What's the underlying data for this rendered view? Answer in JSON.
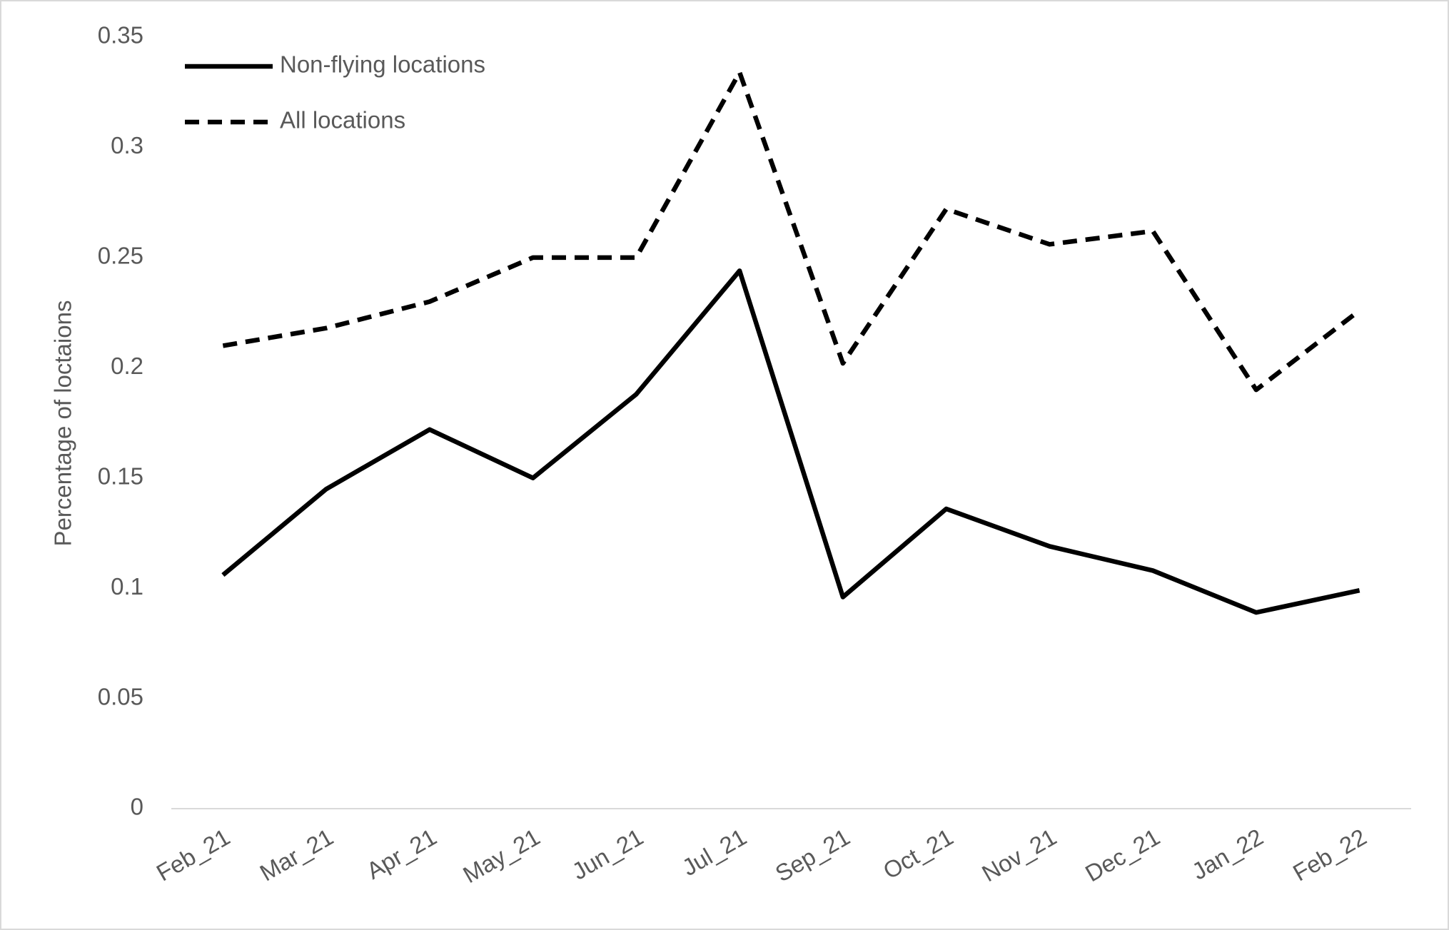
{
  "chart_data": {
    "type": "line",
    "y_label": "Percentage of loctaions",
    "categories": [
      "Feb_21",
      "Mar_21",
      "Apr_21",
      "May_21",
      "Jun_21",
      "Jul_21",
      "Sep_21",
      "Oct_21",
      "Nov_21",
      "Dec_21",
      "Jan_22",
      "Feb_22"
    ],
    "series": [
      {
        "name": "Non-flying locations",
        "color": "#000000",
        "dash": "solid",
        "values": [
          0.106,
          0.145,
          0.172,
          0.15,
          0.188,
          0.244,
          0.096,
          0.136,
          0.119,
          0.108,
          0.089,
          0.099
        ]
      },
      {
        "name": "All locations",
        "color": "#000000",
        "dash": "dashed",
        "values": [
          0.21,
          0.218,
          0.23,
          0.25,
          0.25,
          0.334,
          0.202,
          0.272,
          0.256,
          0.262,
          0.19,
          0.226
        ]
      }
    ],
    "ylim": [
      0,
      0.35
    ],
    "yticks": [
      0,
      0.05,
      0.1,
      0.15,
      0.2,
      0.25,
      0.3,
      0.35
    ],
    "grid": false,
    "legend": "upper left"
  }
}
